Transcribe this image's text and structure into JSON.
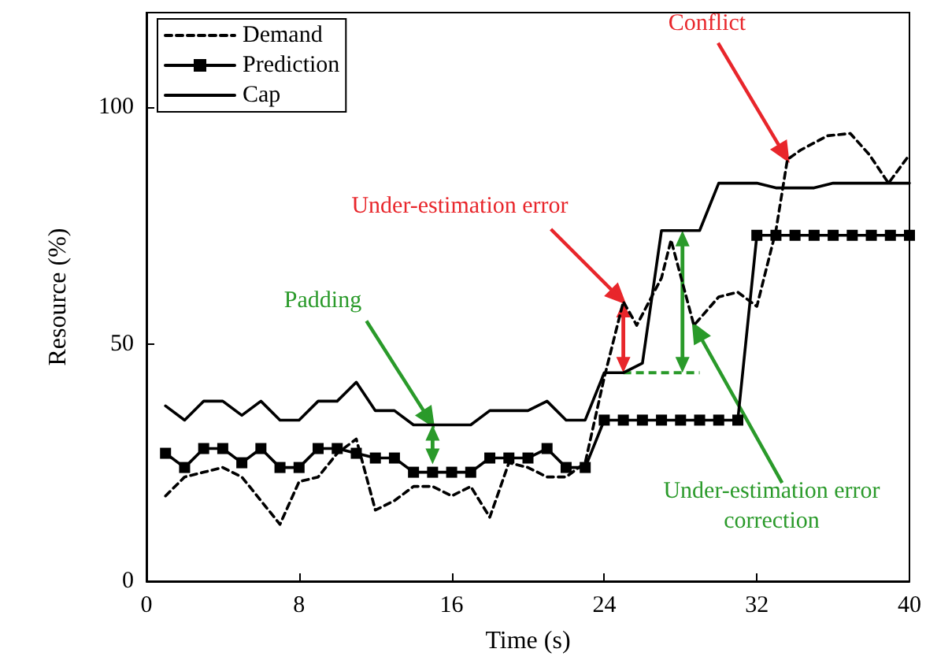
{
  "chart_data": {
    "type": "line",
    "xlabel": "Time (s)",
    "ylabel": "Resource (%)",
    "xlim": [
      0,
      40
    ],
    "xticks": [
      0,
      8,
      16,
      24,
      32,
      40
    ],
    "ylim": [
      0,
      120
    ],
    "yticks": [
      0,
      50,
      100
    ],
    "grid": false,
    "legend": "top left",
    "series": [
      {
        "name": "Demand",
        "color": "#000000",
        "line_style": "dashed",
        "marker": "none",
        "x": [
          1,
          2,
          3,
          4,
          5,
          6,
          7,
          8,
          9,
          10,
          11,
          12,
          13,
          14,
          15,
          16,
          17,
          18,
          19,
          20,
          21,
          22,
          23,
          24,
          25,
          25.7,
          27,
          27.5,
          28.7,
          30,
          31,
          32,
          33,
          33.6,
          34.3,
          35.7,
          36.9,
          37.9,
          38.9,
          40
        ],
        "values": [
          18,
          22,
          23,
          24,
          22,
          17,
          12,
          21,
          22,
          27,
          30,
          15,
          17,
          20,
          20,
          18,
          20,
          13.5,
          25,
          24,
          22,
          22,
          25,
          43,
          59,
          54,
          64,
          72,
          54,
          60,
          61,
          58,
          74,
          89,
          91,
          94,
          94.5,
          90,
          84,
          90
        ]
      },
      {
        "name": "Prediction",
        "color": "#000000",
        "line_style": "solid",
        "marker": "square",
        "x": [
          1,
          2,
          3,
          4,
          5,
          6,
          7,
          8,
          9,
          10,
          11,
          12,
          13,
          14,
          15,
          16,
          17,
          18,
          19,
          20,
          21,
          22,
          23,
          24,
          25,
          26,
          27,
          28,
          29,
          30,
          31,
          32,
          33,
          34,
          35,
          36,
          37,
          38,
          39,
          40
        ],
        "values": [
          27,
          24,
          28,
          28,
          25,
          28,
          24,
          24,
          28,
          28,
          27,
          26,
          26,
          23,
          23,
          23,
          23,
          26,
          26,
          26,
          28,
          24,
          24,
          34,
          34,
          34,
          34,
          34,
          34,
          34,
          34,
          73,
          73,
          73,
          73,
          73,
          73,
          73,
          73,
          73
        ]
      },
      {
        "name": "Cap",
        "color": "#000000",
        "line_style": "solid",
        "marker": "none",
        "x": [
          1,
          2,
          3,
          4,
          5,
          6,
          7,
          8,
          9,
          10,
          11,
          12,
          13,
          14,
          15,
          16,
          17,
          18,
          19,
          20,
          21,
          22,
          23,
          24,
          25,
          26,
          27,
          28,
          29,
          30,
          31,
          32,
          33,
          34,
          35,
          36,
          37,
          38,
          39,
          40
        ],
        "values": [
          37,
          34,
          38,
          38,
          35,
          38,
          34,
          34,
          38,
          38,
          42,
          36,
          36,
          33,
          33,
          33,
          33,
          36,
          36,
          36,
          38,
          34,
          34,
          44,
          44,
          46,
          74,
          74,
          74,
          84,
          84,
          84,
          83,
          83,
          83,
          84,
          84,
          84,
          84,
          84
        ]
      }
    ],
    "annotations": [
      "Conflict",
      "Under-estimation error",
      "Padding",
      "Under-estimation error\ncorrection"
    ]
  }
}
